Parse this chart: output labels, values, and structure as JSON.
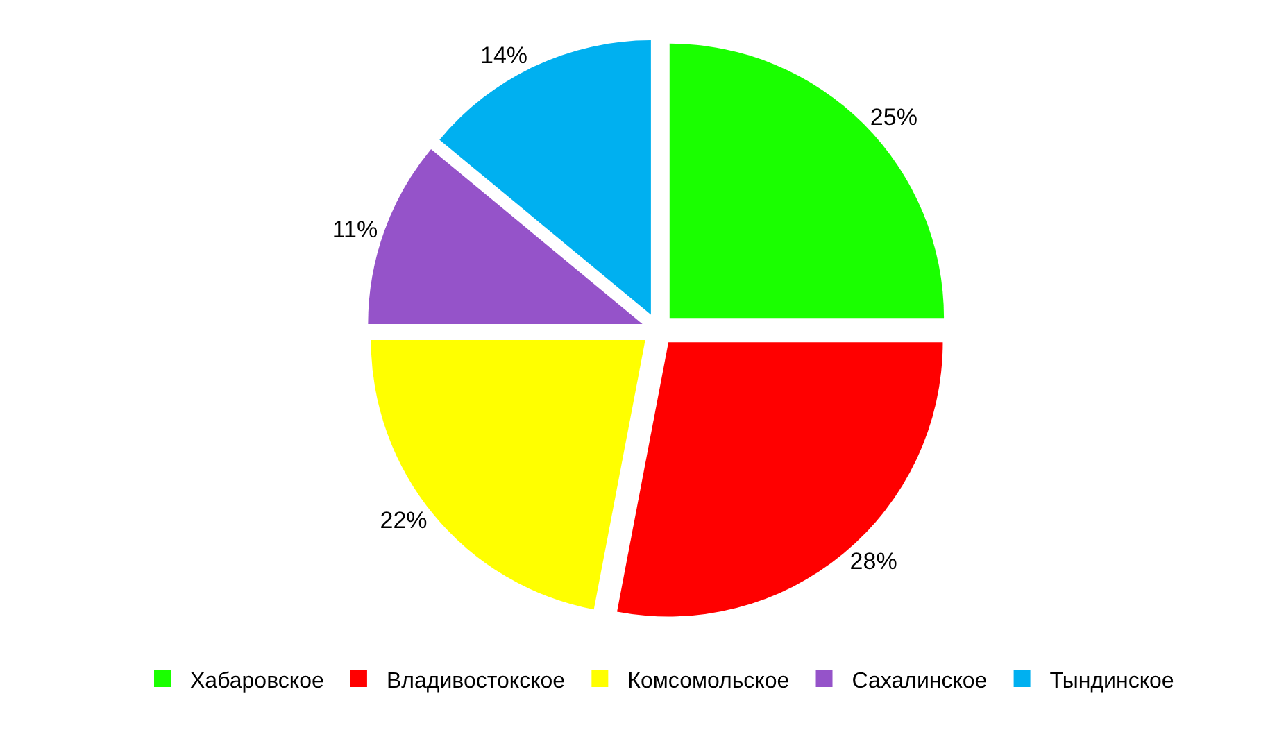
{
  "chart_data": {
    "type": "pie",
    "categories": [
      "Хабаровское",
      "Владивостокское",
      "Комсомольское",
      "Сахалинское",
      "Тындинское"
    ],
    "values": [
      25,
      28,
      22,
      11,
      14
    ],
    "value_labels": [
      "25%",
      "28%",
      "22%",
      "11%",
      "14%"
    ],
    "colors": [
      "#1aff00",
      "#ff0000",
      "#ffff00",
      "#9553c9",
      "#00b0f0"
    ],
    "legend": "bottom"
  }
}
